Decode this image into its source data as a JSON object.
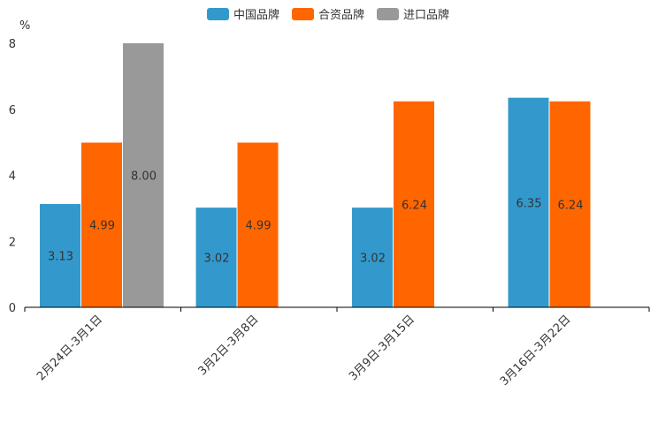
{
  "chart_data": {
    "type": "bar",
    "title": "",
    "xlabel": "",
    "ylabel": "%",
    "ylim": [
      0,
      8
    ],
    "yticks": [
      0,
      2,
      4,
      6,
      8
    ],
    "grid": false,
    "legend_position": "top-center",
    "categories": [
      "2月24日-3月1日",
      "3月2日-3月8日",
      "3月9日-3月15日",
      "3月16日-3月22日"
    ],
    "series": [
      {
        "name": "中国品牌",
        "color": "#3399cc",
        "values": [
          3.13,
          3.02,
          3.02,
          6.35
        ],
        "labels": [
          "3.13",
          "3.02",
          "3.02",
          "6.35"
        ]
      },
      {
        "name": "合资品牌",
        "color": "#ff6600",
        "values": [
          4.99,
          4.99,
          6.24,
          6.24
        ],
        "labels": [
          "4.99",
          "4.99",
          "6.24",
          "6.24"
        ]
      },
      {
        "name": "进口品牌",
        "color": "#999999",
        "values": [
          8.0,
          null,
          null,
          null
        ],
        "labels": [
          "8.00",
          null,
          null,
          null
        ]
      }
    ]
  }
}
